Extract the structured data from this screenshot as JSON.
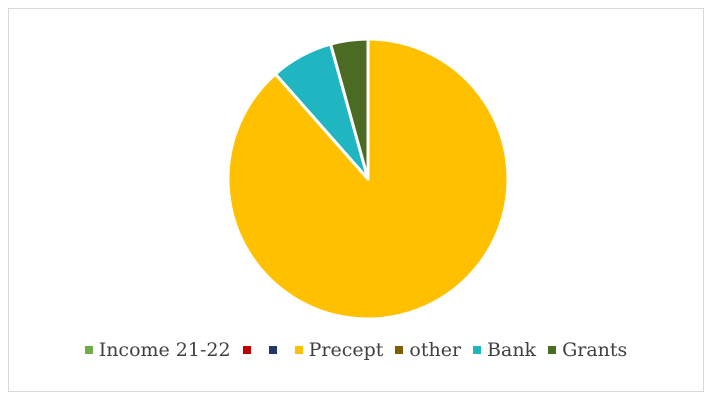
{
  "chart_data": {
    "type": "pie",
    "title": "",
    "legend_position": "bottom",
    "series": [
      {
        "name": "Income 21-22",
        "value": 0,
        "color": "#70ad47"
      },
      {
        "name": "",
        "value": 0,
        "color": "#c00000"
      },
      {
        "name": "",
        "value": 0,
        "color": "#1f3864"
      },
      {
        "name": "Precept",
        "value": 88.5,
        "color": "#ffc000"
      },
      {
        "name": "other",
        "value": 0,
        "color": "#7f6000"
      },
      {
        "name": "Bank",
        "value": 7.2,
        "color": "#1fb5c1"
      },
      {
        "name": "Grants",
        "value": 4.3,
        "color": "#4b6b23"
      }
    ]
  }
}
